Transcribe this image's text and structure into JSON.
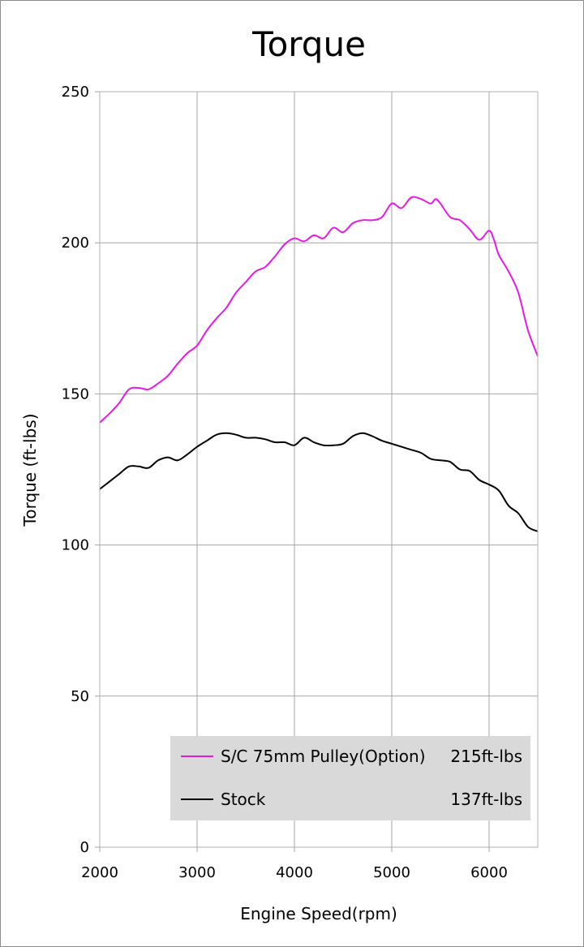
{
  "chart_data": {
    "type": "line",
    "title": "Torque",
    "xlabel": "Engine Speed(rpm)",
    "ylabel": "Torque (ft-lbs)",
    "xlim": [
      2000,
      6500
    ],
    "ylim": [
      0,
      250
    ],
    "xticks": [
      2000,
      3000,
      4000,
      5000,
      6000
    ],
    "yticks": [
      0,
      50,
      100,
      150,
      200,
      250
    ],
    "grid": true,
    "legend_position": "bottom-right",
    "series": [
      {
        "name": "S/C 75mm Pulley(Option)",
        "peak_label": "215ft-lbs",
        "color": "#e619e6",
        "points": [
          [
            2000,
            140.5
          ],
          [
            2100,
            143.5
          ],
          [
            2200,
            147
          ],
          [
            2300,
            151.5
          ],
          [
            2400,
            152
          ],
          [
            2500,
            151.5
          ],
          [
            2600,
            153.5
          ],
          [
            2700,
            156
          ],
          [
            2800,
            160
          ],
          [
            2900,
            163.5
          ],
          [
            3000,
            166
          ],
          [
            3100,
            171
          ],
          [
            3200,
            175
          ],
          [
            3300,
            178.5
          ],
          [
            3400,
            183.5
          ],
          [
            3500,
            187
          ],
          [
            3600,
            190.5
          ],
          [
            3700,
            192
          ],
          [
            3800,
            195.5
          ],
          [
            3900,
            199.5
          ],
          [
            4000,
            201.5
          ],
          [
            4100,
            200.5
          ],
          [
            4200,
            202.5
          ],
          [
            4300,
            201.5
          ],
          [
            4400,
            205
          ],
          [
            4500,
            203.5
          ],
          [
            4600,
            206.5
          ],
          [
            4700,
            207.5
          ],
          [
            4800,
            207.5
          ],
          [
            4900,
            208.5
          ],
          [
            5000,
            213
          ],
          [
            5100,
            211.5
          ],
          [
            5200,
            215
          ],
          [
            5300,
            214.5
          ],
          [
            5400,
            213
          ],
          [
            5450,
            214.5
          ],
          [
            5500,
            213
          ],
          [
            5600,
            208.5
          ],
          [
            5700,
            207.5
          ],
          [
            5800,
            204.5
          ],
          [
            5900,
            201
          ],
          [
            6000,
            204
          ],
          [
            6050,
            201
          ],
          [
            6100,
            196
          ],
          [
            6200,
            190.5
          ],
          [
            6300,
            183.5
          ],
          [
            6400,
            171
          ],
          [
            6500,
            162.5
          ]
        ]
      },
      {
        "name": "Stock",
        "peak_label": "137ft-lbs",
        "color": "#000000",
        "points": [
          [
            2000,
            118.5
          ],
          [
            2100,
            121
          ],
          [
            2200,
            123.5
          ],
          [
            2300,
            126
          ],
          [
            2400,
            126
          ],
          [
            2500,
            125.5
          ],
          [
            2600,
            128
          ],
          [
            2700,
            129
          ],
          [
            2800,
            128
          ],
          [
            2900,
            130
          ],
          [
            3000,
            132.5
          ],
          [
            3100,
            134.5
          ],
          [
            3200,
            136.5
          ],
          [
            3300,
            137
          ],
          [
            3400,
            136.5
          ],
          [
            3500,
            135.5
          ],
          [
            3600,
            135.5
          ],
          [
            3700,
            135
          ],
          [
            3800,
            134
          ],
          [
            3900,
            134
          ],
          [
            4000,
            133
          ],
          [
            4100,
            135.5
          ],
          [
            4200,
            134
          ],
          [
            4300,
            133
          ],
          [
            4400,
            133
          ],
          [
            4500,
            133.5
          ],
          [
            4600,
            136
          ],
          [
            4700,
            137
          ],
          [
            4800,
            136
          ],
          [
            4900,
            134.5
          ],
          [
            5000,
            133.5
          ],
          [
            5100,
            132.5
          ],
          [
            5200,
            131.5
          ],
          [
            5300,
            130.5
          ],
          [
            5400,
            128.5
          ],
          [
            5500,
            128
          ],
          [
            5600,
            127.5
          ],
          [
            5700,
            125
          ],
          [
            5800,
            124.5
          ],
          [
            5900,
            121.5
          ],
          [
            6000,
            120
          ],
          [
            6100,
            118
          ],
          [
            6200,
            113
          ],
          [
            6300,
            110.5
          ],
          [
            6400,
            106
          ],
          [
            6500,
            104.5
          ]
        ]
      }
    ]
  }
}
